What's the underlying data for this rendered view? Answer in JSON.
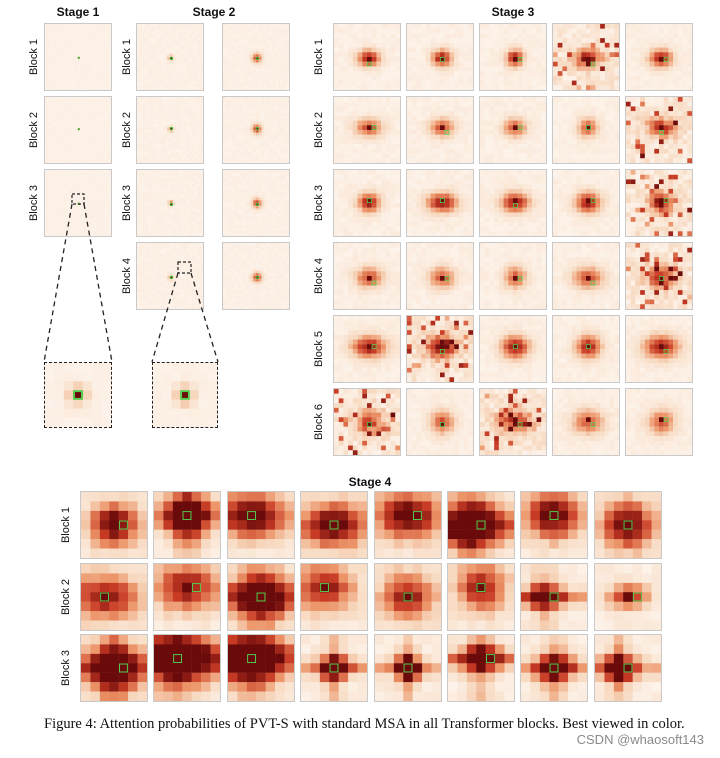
{
  "figure": {
    "stage1": {
      "title": "Stage 1",
      "blocks": [
        {
          "label": "Block 1",
          "maps": [
            1
          ]
        },
        {
          "label": "Block 2",
          "maps": [
            1
          ]
        },
        {
          "label": "Block 3",
          "maps": [
            1
          ]
        }
      ]
    },
    "stage2": {
      "title": "Stage 2",
      "blocks": [
        {
          "label": "Block 1",
          "maps": [
            1,
            2
          ]
        },
        {
          "label": "Block 2",
          "maps": [
            1,
            2
          ]
        },
        {
          "label": "Block 3",
          "maps": [
            1,
            2
          ]
        },
        {
          "label": "Block 4",
          "maps": [
            1,
            2
          ]
        }
      ]
    },
    "stage3": {
      "title": "Stage 3",
      "blocks": [
        {
          "label": "Block 1",
          "maps": [
            1,
            2,
            3,
            4,
            5
          ]
        },
        {
          "label": "Block 2",
          "maps": [
            1,
            2,
            3,
            4,
            5
          ]
        },
        {
          "label": "Block 3",
          "maps": [
            1,
            2,
            3,
            4,
            5
          ]
        },
        {
          "label": "Block 4",
          "maps": [
            1,
            2,
            3,
            4,
            5
          ]
        },
        {
          "label": "Block 5",
          "maps": [
            1,
            2,
            3,
            4,
            5
          ]
        },
        {
          "label": "Block 6",
          "maps": [
            1,
            2,
            3,
            4,
            5
          ]
        }
      ]
    },
    "stage4": {
      "title": "Stage 4",
      "blocks": [
        {
          "label": "Block 1",
          "maps": [
            1,
            2,
            3,
            4,
            5,
            6,
            7,
            8
          ]
        },
        {
          "label": "Block 2",
          "maps": [
            1,
            2,
            3,
            4,
            5,
            6,
            7,
            8
          ]
        },
        {
          "label": "Block 3",
          "maps": [
            1,
            2,
            3,
            4,
            5,
            6,
            7,
            8
          ]
        }
      ]
    },
    "colors": {
      "background": "#fdf3ea",
      "low": "#f7d9c0",
      "mid": "#ec9468",
      "high": "#c73a24",
      "peak": "#6b0a0a",
      "query": "#4fd24f"
    }
  },
  "caption": "Figure 4: Attention probabilities of PVT-S with standard MSA in all Transformer blocks. Best viewed in color.",
  "watermark": "CSDN @whaosoft143"
}
